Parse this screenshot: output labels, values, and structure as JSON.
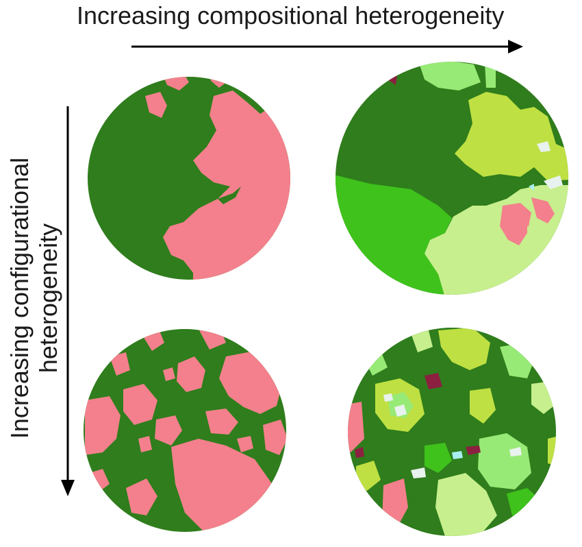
{
  "axes": {
    "horizontal_label": "Increasing compositional heterogeneity",
    "vertical_label_line1": "Increasing configurational",
    "vertical_label_line2": "heterogeneity"
  },
  "palette": {
    "forest": "#2f7d1c",
    "pink": "#f3808c",
    "bright_green": "#3fc21c",
    "light_green": "#98ea76",
    "yellow_green": "#bfe043",
    "pale_green": "#c7ef8e",
    "white_patch": "#e8f2ee",
    "maroon": "#8c2040",
    "cyan": "#a8eef0"
  }
}
